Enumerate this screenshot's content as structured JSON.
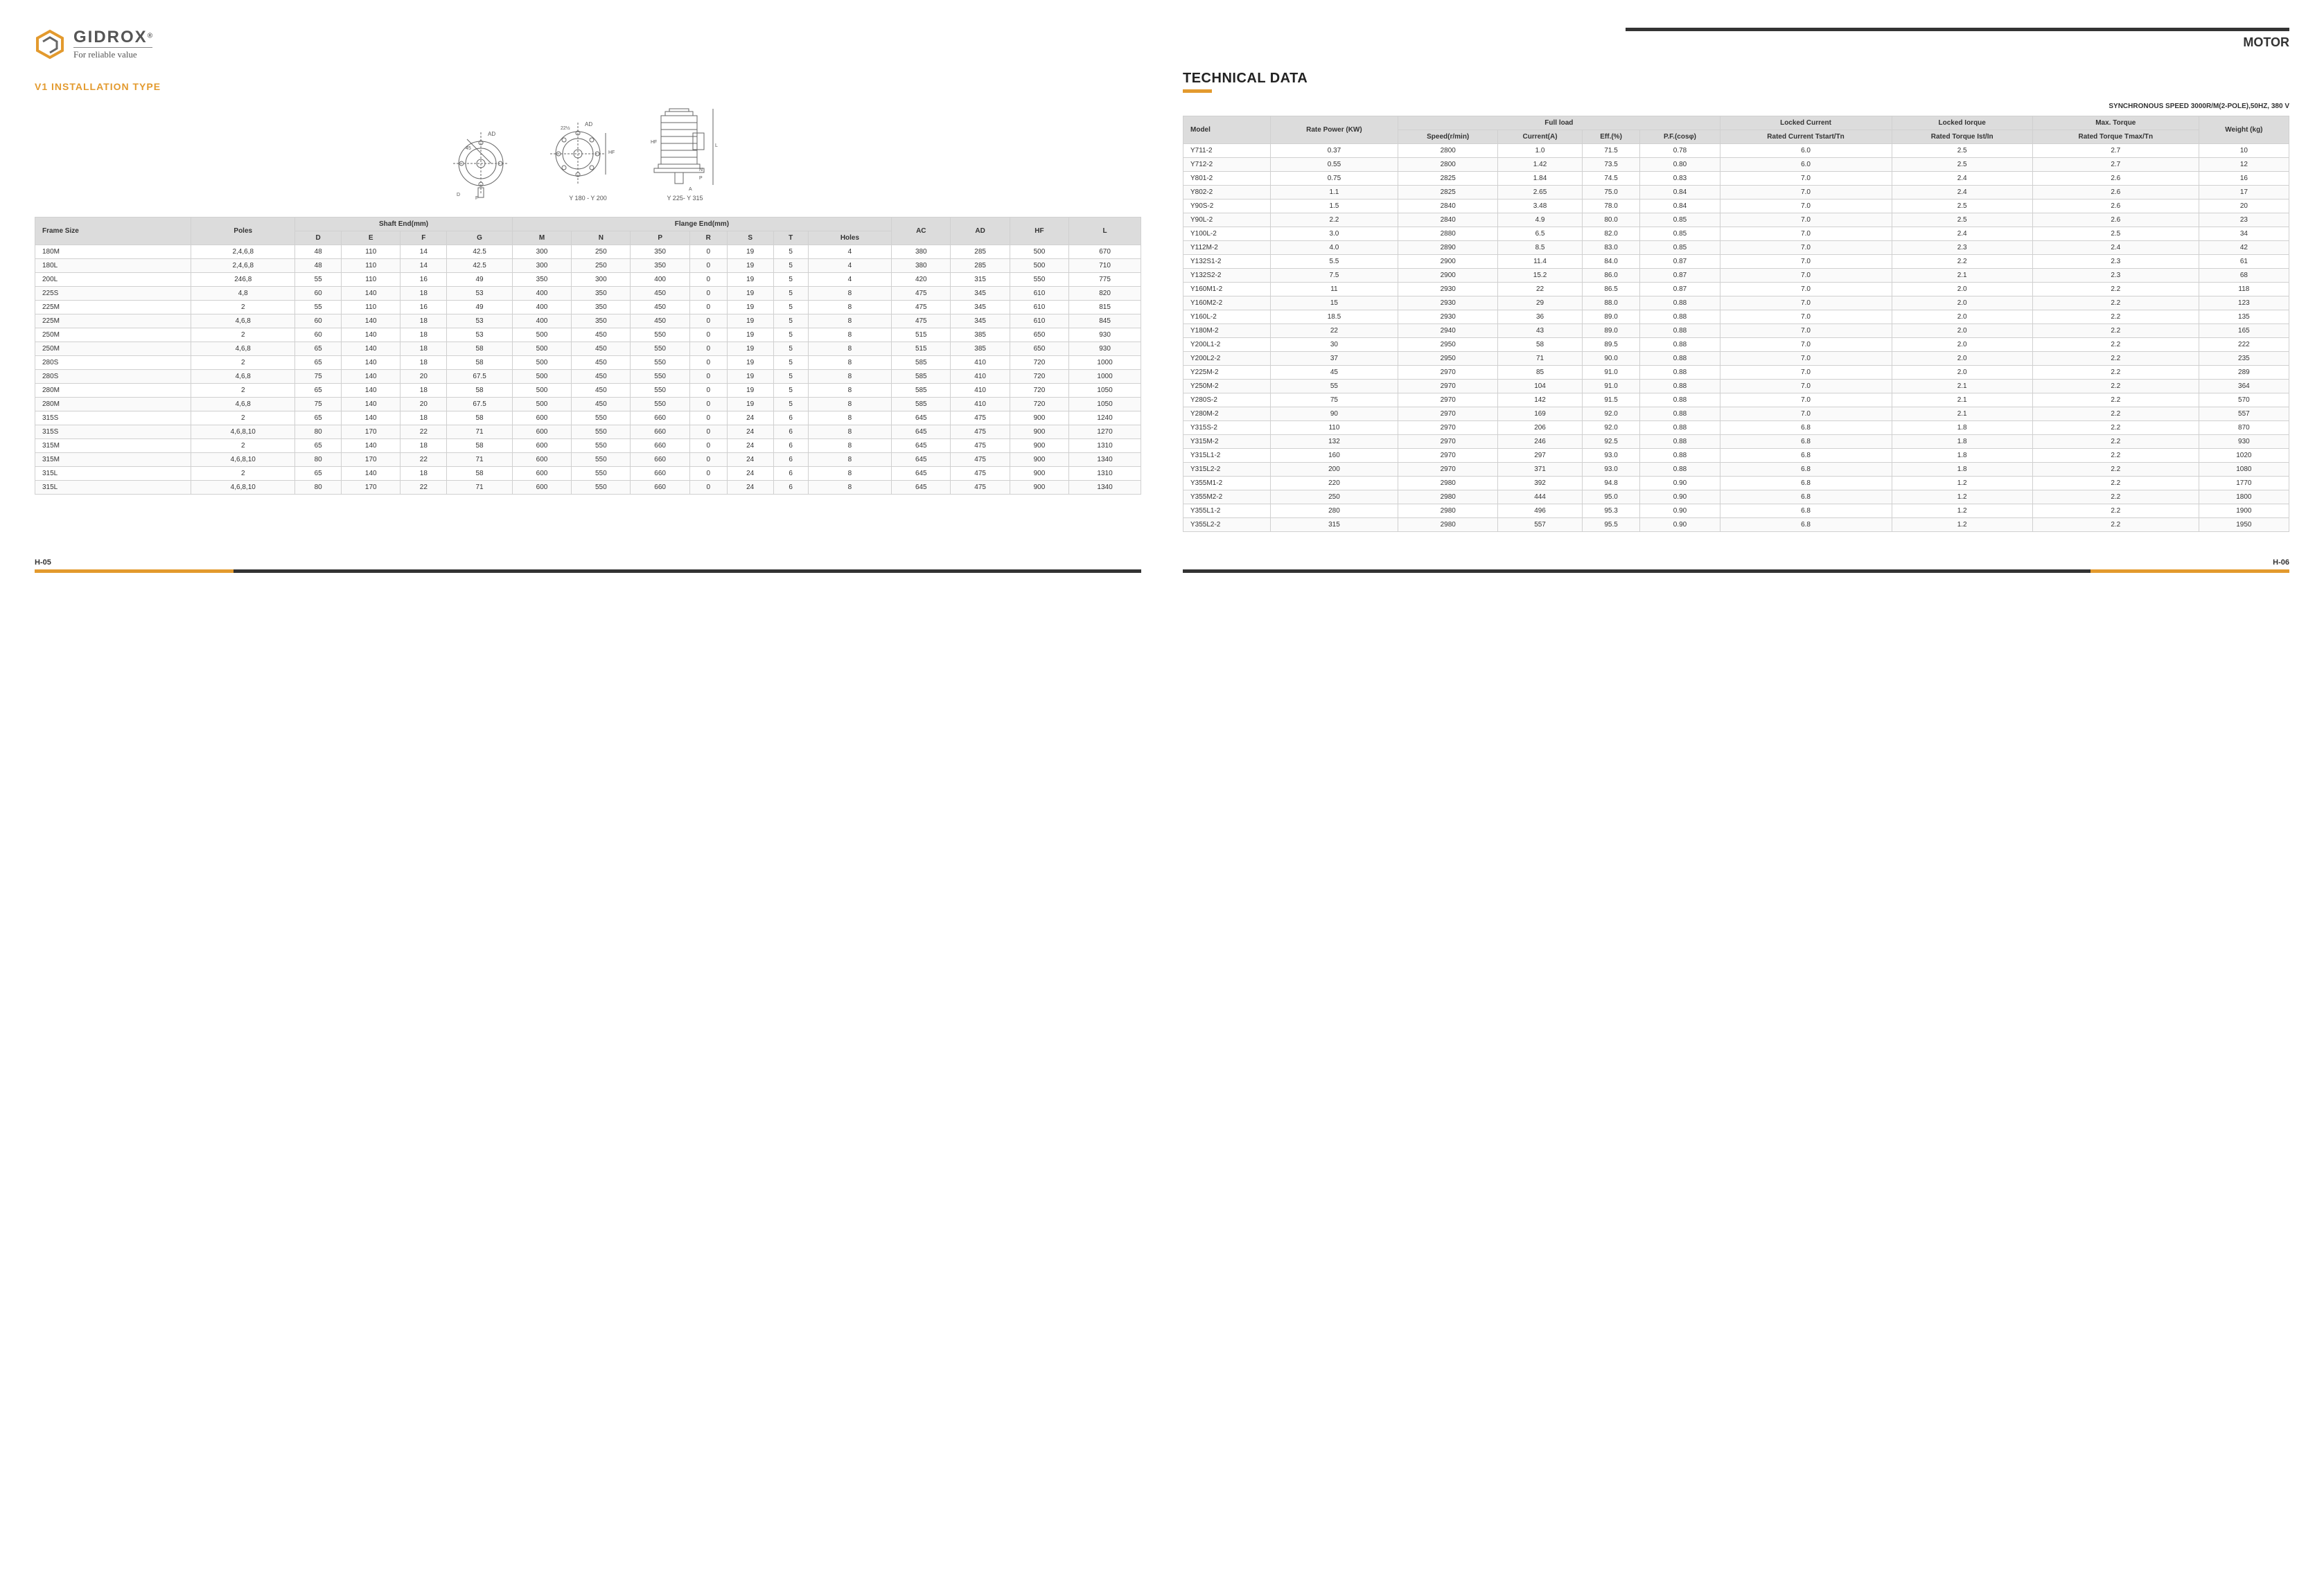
{
  "brand": {
    "name": "GIDROX",
    "reg": "®",
    "tagline": "For reliable value"
  },
  "motor_label": "MOTOR",
  "left": {
    "section_title": "V1  INSTALLATION TYPE",
    "diagram_captions": {
      "center": "Y 180 - Y 200",
      "right": "Y 225- Y 315"
    },
    "table_header": {
      "frame": "Frame Size",
      "poles": "Poles",
      "shaft_group": "Shaft End(mm)",
      "shaft": [
        "D",
        "E",
        "F",
        "G"
      ],
      "flange_group": "Flange End(mm)",
      "flange": [
        "M",
        "N",
        "P",
        "R",
        "S",
        "T",
        "Holes"
      ],
      "tail": [
        "AC",
        "AD",
        "HF",
        "L"
      ]
    },
    "rows": [
      [
        "180M",
        "2,4,6,8",
        "48",
        "110",
        "14",
        "42.5",
        "300",
        "250",
        "350",
        "0",
        "19",
        "5",
        "4",
        "380",
        "285",
        "500",
        "670"
      ],
      [
        "180L",
        "2,4,6,8",
        "48",
        "110",
        "14",
        "42.5",
        "300",
        "250",
        "350",
        "0",
        "19",
        "5",
        "4",
        "380",
        "285",
        "500",
        "710"
      ],
      [
        "200L",
        "246,8",
        "55",
        "110",
        "16",
        "49",
        "350",
        "300",
        "400",
        "0",
        "19",
        "5",
        "4",
        "420",
        "315",
        "550",
        "775"
      ],
      [
        "225S",
        "4,8",
        "60",
        "140",
        "18",
        "53",
        "400",
        "350",
        "450",
        "0",
        "19",
        "5",
        "8",
        "475",
        "345",
        "610",
        "820"
      ],
      [
        "225M",
        "2",
        "55",
        "110",
        "16",
        "49",
        "400",
        "350",
        "450",
        "0",
        "19",
        "5",
        "8",
        "475",
        "345",
        "610",
        "815"
      ],
      [
        "225M",
        "4,6,8",
        "60",
        "140",
        "18",
        "53",
        "400",
        "350",
        "450",
        "0",
        "19",
        "5",
        "8",
        "475",
        "345",
        "610",
        "845"
      ],
      [
        "250M",
        "2",
        "60",
        "140",
        "18",
        "53",
        "500",
        "450",
        "550",
        "0",
        "19",
        "5",
        "8",
        "515",
        "385",
        "650",
        "930"
      ],
      [
        "250M",
        "4,6,8",
        "65",
        "140",
        "18",
        "58",
        "500",
        "450",
        "550",
        "0",
        "19",
        "5",
        "8",
        "515",
        "385",
        "650",
        "930"
      ],
      [
        "280S",
        "2",
        "65",
        "140",
        "18",
        "58",
        "500",
        "450",
        "550",
        "0",
        "19",
        "5",
        "8",
        "585",
        "410",
        "720",
        "1000"
      ],
      [
        "280S",
        "4,6,8",
        "75",
        "140",
        "20",
        "67.5",
        "500",
        "450",
        "550",
        "0",
        "19",
        "5",
        "8",
        "585",
        "410",
        "720",
        "1000"
      ],
      [
        "280M",
        "2",
        "65",
        "140",
        "18",
        "58",
        "500",
        "450",
        "550",
        "0",
        "19",
        "5",
        "8",
        "585",
        "410",
        "720",
        "1050"
      ],
      [
        "280M",
        "4,6,8",
        "75",
        "140",
        "20",
        "67.5",
        "500",
        "450",
        "550",
        "0",
        "19",
        "5",
        "8",
        "585",
        "410",
        "720",
        "1050"
      ],
      [
        "315S",
        "2",
        "65",
        "140",
        "18",
        "58",
        "600",
        "550",
        "660",
        "0",
        "24",
        "6",
        "8",
        "645",
        "475",
        "900",
        "1240"
      ],
      [
        "315S",
        "4,6,8,10",
        "80",
        "170",
        "22",
        "71",
        "600",
        "550",
        "660",
        "0",
        "24",
        "6",
        "8",
        "645",
        "475",
        "900",
        "1270"
      ],
      [
        "315M",
        "2",
        "65",
        "140",
        "18",
        "58",
        "600",
        "550",
        "660",
        "0",
        "24",
        "6",
        "8",
        "645",
        "475",
        "900",
        "1310"
      ],
      [
        "315M",
        "4,6,8,10",
        "80",
        "170",
        "22",
        "71",
        "600",
        "550",
        "660",
        "0",
        "24",
        "6",
        "8",
        "645",
        "475",
        "900",
        "1340"
      ],
      [
        "315L",
        "2",
        "65",
        "140",
        "18",
        "58",
        "600",
        "550",
        "660",
        "0",
        "24",
        "6",
        "8",
        "645",
        "475",
        "900",
        "1310"
      ],
      [
        "315L",
        "4,6,8,10",
        "80",
        "170",
        "22",
        "71",
        "600",
        "550",
        "660",
        "0",
        "24",
        "6",
        "8",
        "645",
        "475",
        "900",
        "1340"
      ]
    ],
    "page_no": "H-05"
  },
  "right": {
    "section_title": "TECHNICAL DATA",
    "subtitle": "SYNCHRONOUS SPEED 3000R/M(2-POLE),50HZ, 380 V",
    "header": {
      "model": "Model",
      "rate_power": "Rate Power (KW)",
      "full_load_group": "Full load",
      "full_load": [
        "Speed(r/min)",
        "Current(A)",
        "Eff.(%)",
        "P.F.(cosφ)"
      ],
      "locked_current": "Locked Current",
      "locked_current_sub": "Rated Current Tstart/Tn",
      "locked_torque": "Locked Iorque",
      "locked_torque_sub": "Rated Torque Ist/In",
      "max_torque": "Max. Torque",
      "max_torque_sub": "Rated Torque Tmax/Tn",
      "weight": "Weight (kg)"
    },
    "rows": [
      [
        "Y711-2",
        "0.37",
        "2800",
        "1.0",
        "71.5",
        "0.78",
        "6.0",
        "2.5",
        "2.7",
        "10"
      ],
      [
        "Y712-2",
        "0.55",
        "2800",
        "1.42",
        "73.5",
        "0.80",
        "6.0",
        "2.5",
        "2.7",
        "12"
      ],
      [
        "Y801-2",
        "0.75",
        "2825",
        "1.84",
        "74.5",
        "0.83",
        "7.0",
        "2.4",
        "2.6",
        "16"
      ],
      [
        "Y802-2",
        "1.1",
        "2825",
        "2.65",
        "75.0",
        "0.84",
        "7.0",
        "2.4",
        "2.6",
        "17"
      ],
      [
        "Y90S-2",
        "1.5",
        "2840",
        "3.48",
        "78.0",
        "0.84",
        "7.0",
        "2.5",
        "2.6",
        "20"
      ],
      [
        "Y90L-2",
        "2.2",
        "2840",
        "4.9",
        "80.0",
        "0.85",
        "7.0",
        "2.5",
        "2.6",
        "23"
      ],
      [
        "Y100L-2",
        "3.0",
        "2880",
        "6.5",
        "82.0",
        "0.85",
        "7.0",
        "2.4",
        "2.5",
        "34"
      ],
      [
        "Y112M-2",
        "4.0",
        "2890",
        "8.5",
        "83.0",
        "0.85",
        "7.0",
        "2.3",
        "2.4",
        "42"
      ],
      [
        "Y132S1-2",
        "5.5",
        "2900",
        "11.4",
        "84.0",
        "0.87",
        "7.0",
        "2.2",
        "2.3",
        "61"
      ],
      [
        "Y132S2-2",
        "7.5",
        "2900",
        "15.2",
        "86.0",
        "0.87",
        "7.0",
        "2.1",
        "2.3",
        "68"
      ],
      [
        "Y160M1-2",
        "11",
        "2930",
        "22",
        "86.5",
        "0.87",
        "7.0",
        "2.0",
        "2.2",
        "118"
      ],
      [
        "Y160M2-2",
        "15",
        "2930",
        "29",
        "88.0",
        "0.88",
        "7.0",
        "2.0",
        "2.2",
        "123"
      ],
      [
        "Y160L-2",
        "18.5",
        "2930",
        "36",
        "89.0",
        "0.88",
        "7.0",
        "2.0",
        "2.2",
        "135"
      ],
      [
        "Y180M-2",
        "22",
        "2940",
        "43",
        "89.0",
        "0.88",
        "7.0",
        "2.0",
        "2.2",
        "165"
      ],
      [
        "Y200L1-2",
        "30",
        "2950",
        "58",
        "89.5",
        "0.88",
        "7.0",
        "2.0",
        "2.2",
        "222"
      ],
      [
        "Y200L2-2",
        "37",
        "2950",
        "71",
        "90.0",
        "0.88",
        "7.0",
        "2.0",
        "2.2",
        "235"
      ],
      [
        "Y225M-2",
        "45",
        "2970",
        "85",
        "91.0",
        "0.88",
        "7.0",
        "2.0",
        "2.2",
        "289"
      ],
      [
        "Y250M-2",
        "55",
        "2970",
        "104",
        "91.0",
        "0.88",
        "7.0",
        "2.1",
        "2.2",
        "364"
      ],
      [
        "Y280S-2",
        "75",
        "2970",
        "142",
        "91.5",
        "0.88",
        "7.0",
        "2.1",
        "2.2",
        "570"
      ],
      [
        "Y280M-2",
        "90",
        "2970",
        "169",
        "92.0",
        "0.88",
        "7.0",
        "2.1",
        "2.2",
        "557"
      ],
      [
        "Y315S-2",
        "110",
        "2970",
        "206",
        "92.0",
        "0.88",
        "6.8",
        "1.8",
        "2.2",
        "870"
      ],
      [
        "Y315M-2",
        "132",
        "2970",
        "246",
        "92.5",
        "0.88",
        "6.8",
        "1.8",
        "2.2",
        "930"
      ],
      [
        "Y315L1-2",
        "160",
        "2970",
        "297",
        "93.0",
        "0.88",
        "6.8",
        "1.8",
        "2.2",
        "1020"
      ],
      [
        "Y315L2-2",
        "200",
        "2970",
        "371",
        "93.0",
        "0.88",
        "6.8",
        "1.8",
        "2.2",
        "1080"
      ],
      [
        "Y355M1-2",
        "220",
        "2980",
        "392",
        "94.8",
        "0.90",
        "6.8",
        "1.2",
        "2.2",
        "1770"
      ],
      [
        "Y355M2-2",
        "250",
        "2980",
        "444",
        "95.0",
        "0.90",
        "6.8",
        "1.2",
        "2.2",
        "1800"
      ],
      [
        "Y355L1-2",
        "280",
        "2980",
        "496",
        "95.3",
        "0.90",
        "6.8",
        "1.2",
        "2.2",
        "1900"
      ],
      [
        "Y355L2-2",
        "315",
        "2980",
        "557",
        "95.5",
        "0.90",
        "6.8",
        "1.2",
        "2.2",
        "1950"
      ]
    ],
    "page_no": "H-06"
  },
  "colors": {
    "accent": "#e39a2e",
    "dark": "#333333",
    "header_bg": "#dcdcdc",
    "border": "#d0d0d0"
  }
}
